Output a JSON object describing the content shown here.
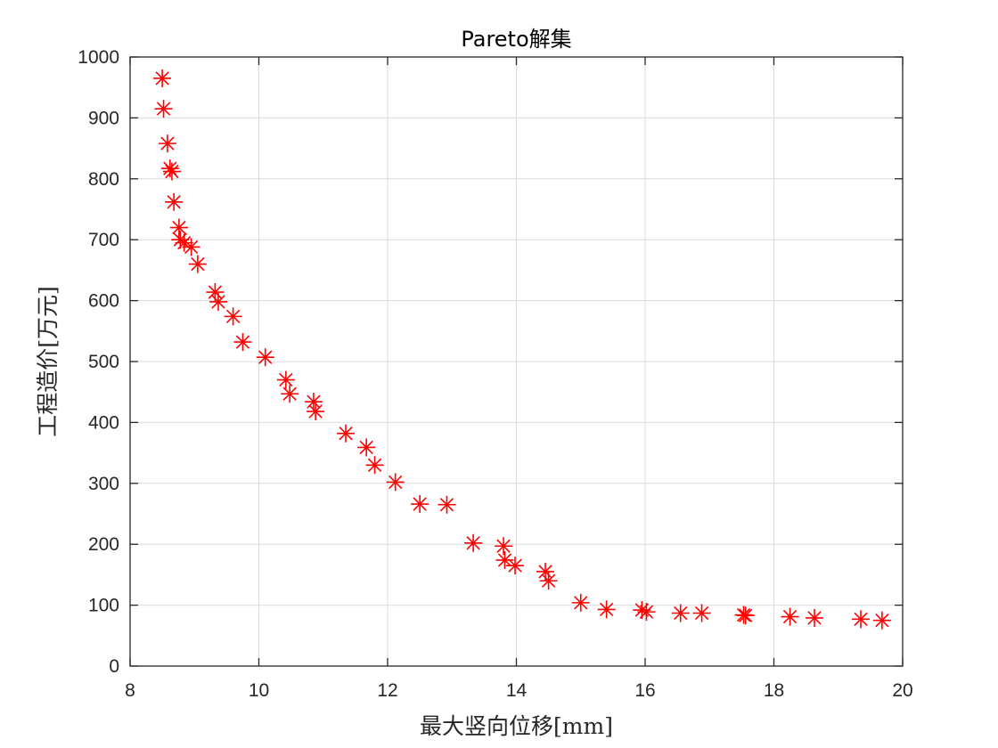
{
  "chart_data": {
    "type": "scatter",
    "title": "Pareto解集",
    "xlabel": "最大竖向位移[mm]",
    "ylabel": "工程造价[万元]",
    "xlim": [
      8,
      20
    ],
    "ylim": [
      0,
      1000
    ],
    "xticks": [
      8,
      10,
      12,
      14,
      16,
      18,
      20
    ],
    "yticks": [
      0,
      100,
      200,
      300,
      400,
      500,
      600,
      700,
      800,
      900,
      1000
    ],
    "grid": true,
    "legend": "none",
    "marker": "asterisk",
    "color": "#ff0000",
    "points": [
      [
        8.5,
        965
      ],
      [
        8.52,
        915
      ],
      [
        8.58,
        858
      ],
      [
        8.62,
        817
      ],
      [
        8.65,
        812
      ],
      [
        8.68,
        762
      ],
      [
        8.76,
        720
      ],
      [
        8.78,
        700
      ],
      [
        8.84,
        695
      ],
      [
        8.95,
        688
      ],
      [
        9.05,
        660
      ],
      [
        9.32,
        614
      ],
      [
        9.37,
        598
      ],
      [
        9.6,
        574
      ],
      [
        9.75,
        532
      ],
      [
        10.1,
        507
      ],
      [
        10.42,
        470
      ],
      [
        10.48,
        447
      ],
      [
        10.85,
        434
      ],
      [
        10.88,
        418
      ],
      [
        11.35,
        382
      ],
      [
        11.67,
        359
      ],
      [
        11.8,
        330
      ],
      [
        12.12,
        302
      ],
      [
        12.5,
        266
      ],
      [
        12.92,
        265
      ],
      [
        13.33,
        202
      ],
      [
        13.8,
        197
      ],
      [
        13.82,
        174
      ],
      [
        13.98,
        165
      ],
      [
        14.45,
        155
      ],
      [
        14.5,
        140
      ],
      [
        15.0,
        104
      ],
      [
        15.4,
        93
      ],
      [
        15.95,
        92
      ],
      [
        16.02,
        89
      ],
      [
        16.55,
        87
      ],
      [
        16.88,
        87
      ],
      [
        17.53,
        84
      ],
      [
        17.56,
        83
      ],
      [
        18.25,
        81
      ],
      [
        18.63,
        79
      ],
      [
        19.35,
        77
      ],
      [
        19.68,
        75
      ]
    ]
  }
}
